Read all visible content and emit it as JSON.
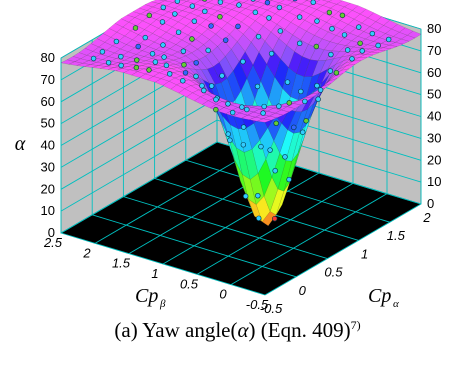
{
  "chart_data": {
    "type": "surface3d",
    "z_title": "α",
    "x_title": "Cp",
    "x_title_sub": "α",
    "y_title": "Cp",
    "y_title_sub": "β",
    "z_ticks": [
      "0",
      "10",
      "20",
      "30",
      "40",
      "50",
      "60",
      "70",
      "80"
    ],
    "z_range": [
      0,
      80
    ],
    "x_ticks": [
      "-0.5",
      "0",
      "0.5",
      "1",
      "1.5",
      "2"
    ],
    "x_range": [
      -0.5,
      2.0
    ],
    "y_ticks": [
      "-0.5",
      "0",
      "0.5",
      "1",
      "1.5",
      "2",
      "2.5"
    ],
    "y_range": [
      -0.5,
      2.5
    ],
    "grid": true,
    "colormap": "rainbow (red low → magenta high)",
    "wall_color": "#c0c0c0",
    "floor_color": "#000000",
    "grid_color": "#00bfbf",
    "marker_colors": [
      "#33ccff",
      "#66cc33",
      "#ff3333",
      "#3366ff"
    ]
  },
  "caption": {
    "prefix": "(a)  Yaw angle(",
    "symbol": "α",
    "middle": ")  (Eqn.  409)",
    "superscript": "7)"
  }
}
